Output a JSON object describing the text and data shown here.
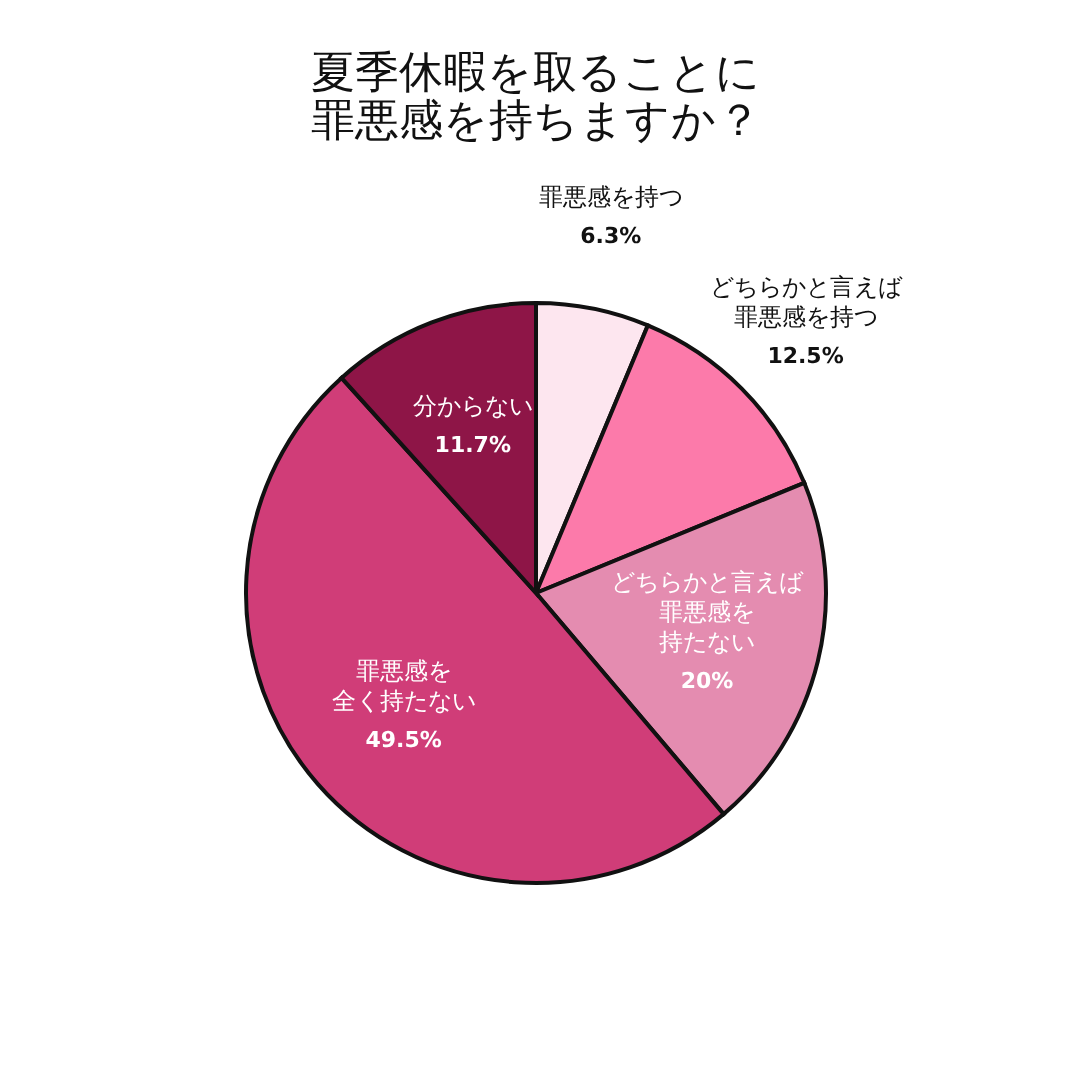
{
  "chart_data": {
    "type": "pie",
    "title": "夏季休暇を取ることに罪悪感を持ちますか？",
    "categories": [
      "罪悪感を持つ",
      "どちらかと言えば罪悪感を持つ",
      "どちらかと言えば罪悪感を持たない",
      "罪悪感を全く持たない",
      "分からない"
    ],
    "values": [
      6.3,
      12.5,
      20,
      49.5,
      11.7
    ],
    "colors": [
      "#fde6ef",
      "#fc7aaa",
      "#e48cb0",
      "#d03d78",
      "#8e1547"
    ],
    "value_labels": [
      "6.3%",
      "12.5%",
      "20%",
      "49.5%",
      "11.7%"
    ],
    "legend": false
  }
}
